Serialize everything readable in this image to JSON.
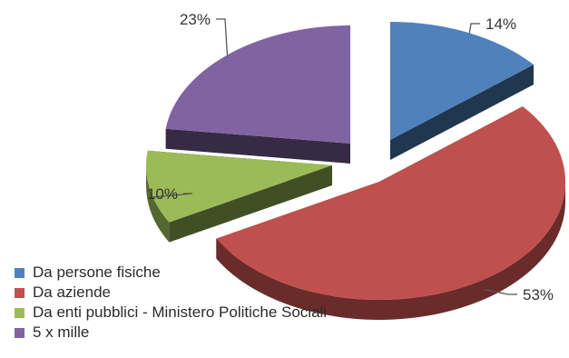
{
  "chart_data": {
    "type": "pie",
    "title": "",
    "slices": [
      {
        "label": "Da persone fisiche",
        "value": 14,
        "value_label": "14%",
        "color": "#4F81BD"
      },
      {
        "label": "Da aziende",
        "value": 53,
        "value_label": "53%",
        "color": "#C0504D"
      },
      {
        "label": "Da enti pubblici - Ministero Politiche Sociali",
        "value": 10,
        "value_label": "10%",
        "color": "#9BBB59"
      },
      {
        "label": "5 x mille",
        "value": 23,
        "value_label": "23%",
        "color": "#8064A2"
      }
    ],
    "legend_position": "bottom-left",
    "style": "3d-exploded"
  }
}
